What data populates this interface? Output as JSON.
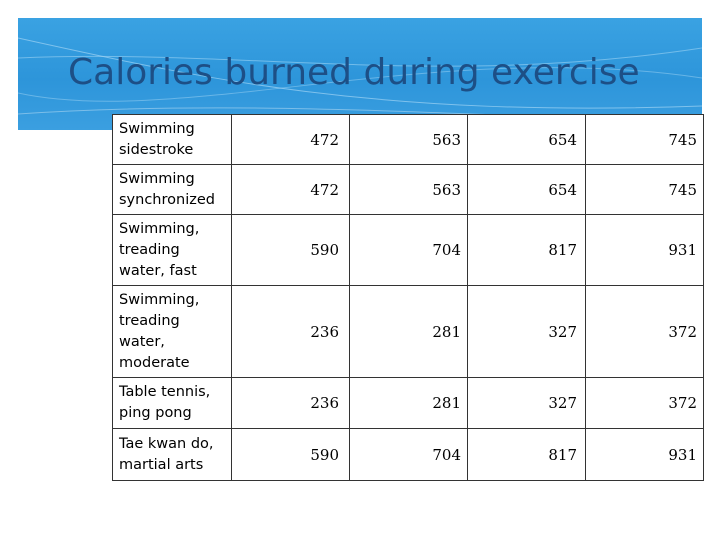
{
  "slide": {
    "title": "Calories burned during exercise"
  },
  "table": {
    "rows": [
      {
        "activity": "Swimming sidestroke",
        "values": [
          "472",
          "563",
          "654",
          "745"
        ]
      },
      {
        "activity": "Swimming synchronized",
        "values": [
          "472",
          "563",
          "654",
          "745"
        ]
      },
      {
        "activity": "Swimming, treading water, fast",
        "values": [
          "590",
          "704",
          "817",
          "931"
        ]
      },
      {
        "activity": "Swimming, treading water, moderate",
        "values": [
          "236",
          "281",
          "327",
          "372"
        ]
      },
      {
        "activity": "Table tennis, ping pong",
        "values": [
          "236",
          "281",
          "327",
          "372"
        ]
      },
      {
        "activity": "Tae kwan do, martial arts",
        "values": [
          "590",
          "704",
          "817",
          "931"
        ]
      }
    ]
  },
  "colors": {
    "header_band": "#3aa2e2",
    "title_text": "#1d4f86"
  }
}
